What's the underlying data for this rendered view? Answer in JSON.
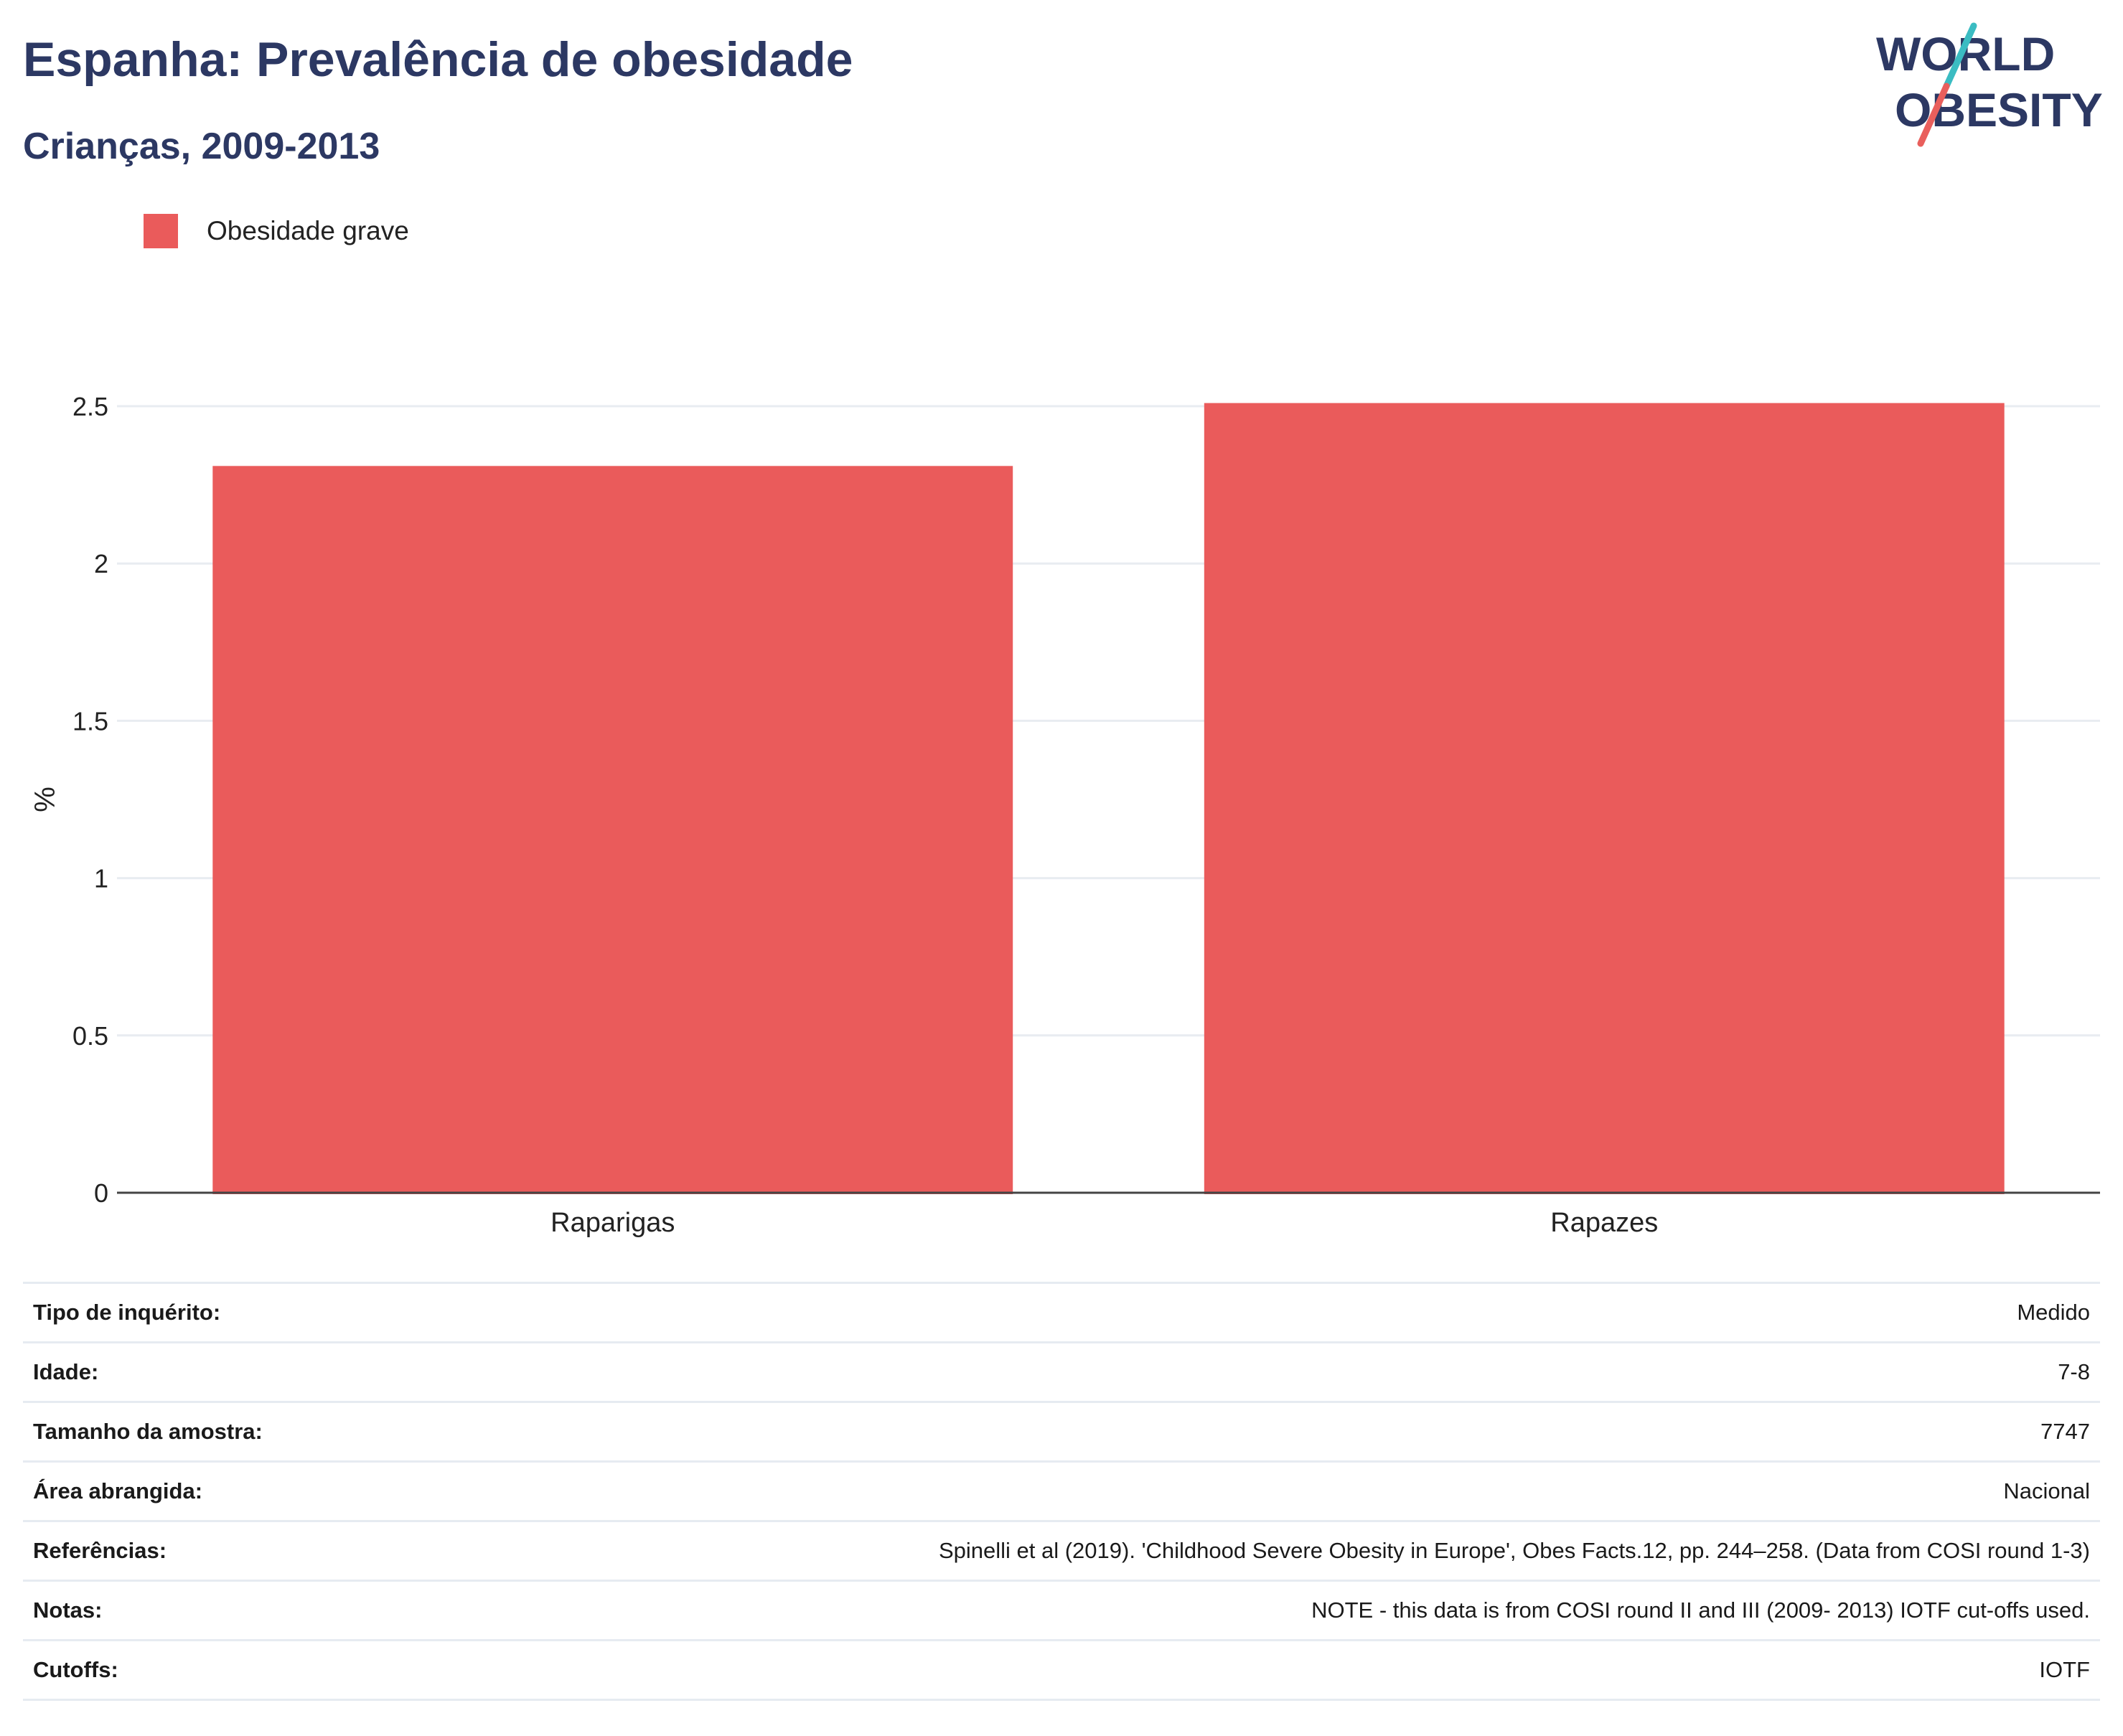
{
  "header": {
    "title": "Espanha: Prevalência de obesidade",
    "subtitle": "Crianças, 2009-2013"
  },
  "logo": {
    "line1": "WORLD",
    "line2": "OBESITY",
    "accent_teal": "#3bbcc2",
    "accent_red": "#e95f5c",
    "text_color": "#2c3863"
  },
  "legend": {
    "items": [
      {
        "label": "Obesidade grave",
        "color": "#ea5b5b"
      }
    ],
    "placement": "top-left"
  },
  "chart_data": {
    "type": "bar",
    "categories": [
      "Raparigas",
      "Rapazes"
    ],
    "series": [
      {
        "name": "Obesidade grave",
        "values": [
          2.31,
          2.51
        ],
        "color": "#ea5b5b"
      }
    ],
    "title": "",
    "xlabel": "",
    "ylabel": "%",
    "ylim": [
      0,
      2.5
    ],
    "yticks": [
      {
        "value": 0,
        "label": "0"
      },
      {
        "value": 0.5,
        "label": "0.5"
      },
      {
        "value": 1,
        "label": "1"
      },
      {
        "value": 1.5,
        "label": "1.5"
      },
      {
        "value": 2,
        "label": "2"
      },
      {
        "value": 2.5,
        "label": "2.5"
      }
    ],
    "grid": true
  },
  "info": [
    {
      "key": "Tipo de inquérito:",
      "value": "Medido"
    },
    {
      "key": "Idade:",
      "value": "7-8"
    },
    {
      "key": "Tamanho da amostra:",
      "value": "7747"
    },
    {
      "key": "Área abrangida:",
      "value": "Nacional"
    },
    {
      "key": "Referências:",
      "value": "Spinelli et al (2019). 'Childhood Severe Obesity in Europe', Obes Facts.12, pp. 244–258. (Data from COSI round 1-3)"
    },
    {
      "key": "Notas:",
      "value": "NOTE - this data is from COSI round II and III (2009- 2013) IOTF cut-offs used."
    },
    {
      "key": "Cutoffs:",
      "value": "IOTF"
    }
  ]
}
